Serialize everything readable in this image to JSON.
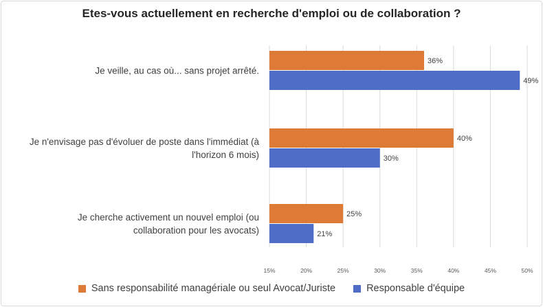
{
  "chart_data": {
    "type": "bar",
    "orientation": "horizontal",
    "title": "Etes-vous actuellement en recherche d'emploi ou de collaboration ?",
    "categories": [
      [
        "Je veille, au cas où... sans projet arrêté."
      ],
      [
        "Je n'envisage pas d'évoluer de poste dans l'immédiat (à",
        "l'horizon 6 mois)"
      ],
      [
        "Je cherche activement un nouvel emploi (ou",
        "collaboration pour les avocats)"
      ]
    ],
    "series": [
      {
        "name": "Sans responsabilité managériale ou seul Avocat/Juriste",
        "color": "#dd7a35",
        "values": [
          36,
          40,
          25
        ],
        "labels": [
          "36%",
          "40%",
          "25%"
        ]
      },
      {
        "name": "Responsable d'équipe",
        "color": "#4f6cc6",
        "values": [
          49,
          30,
          21
        ],
        "labels": [
          "49%",
          "30%",
          "21%"
        ]
      }
    ],
    "xlim": [
      15,
      50
    ],
    "xticks": [
      15,
      20,
      25,
      30,
      35,
      40,
      45,
      50
    ],
    "xtick_labels": [
      "15%",
      "20%",
      "25%",
      "30%",
      "35%",
      "40%",
      "45%",
      "50%"
    ],
    "grid": true,
    "legend_position": "bottom"
  }
}
